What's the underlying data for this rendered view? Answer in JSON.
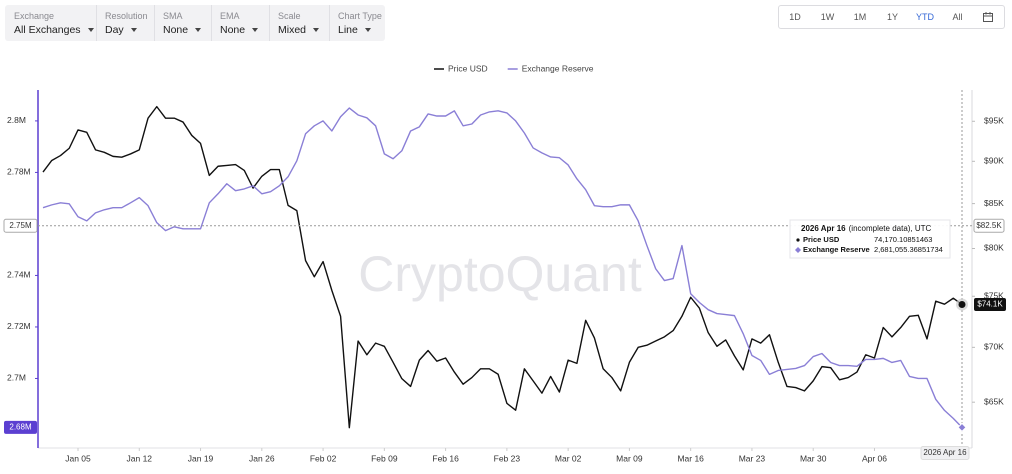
{
  "toolbar": {
    "dropdowns": [
      {
        "label": "Exchange",
        "value": "All Exchanges"
      },
      {
        "label": "Resolution",
        "value": "Day"
      },
      {
        "label": "SMA",
        "value": "None"
      },
      {
        "label": "EMA",
        "value": "None"
      },
      {
        "label": "Scale",
        "value": "Mixed"
      },
      {
        "label": "Chart Type",
        "value": "Line"
      }
    ],
    "ranges": [
      "1D",
      "1W",
      "1M",
      "1Y",
      "YTD",
      "All"
    ],
    "active_range": "YTD"
  },
  "chart_data": {
    "type": "line",
    "watermark": "CryptoQuant",
    "legend": "top",
    "x": [
      "Jan 01",
      "Jan 02",
      "Jan 03",
      "Jan 04",
      "Jan 05",
      "Jan 06",
      "Jan 07",
      "Jan 08",
      "Jan 09",
      "Jan 10",
      "Jan 11",
      "Jan 12",
      "Jan 13",
      "Jan 14",
      "Jan 15",
      "Jan 16",
      "Jan 17",
      "Jan 18",
      "Jan 19",
      "Jan 20",
      "Jan 21",
      "Jan 22",
      "Jan 23",
      "Jan 24",
      "Jan 25",
      "Jan 26",
      "Jan 27",
      "Jan 28",
      "Jan 29",
      "Jan 30",
      "Jan 31",
      "Feb 01",
      "Feb 02",
      "Feb 03",
      "Feb 04",
      "Feb 05",
      "Feb 06",
      "Feb 07",
      "Feb 08",
      "Feb 09",
      "Feb 10",
      "Feb 11",
      "Feb 12",
      "Feb 13",
      "Feb 14",
      "Feb 15",
      "Feb 16",
      "Feb 17",
      "Feb 18",
      "Feb 19",
      "Feb 20",
      "Feb 21",
      "Feb 22",
      "Feb 23",
      "Feb 24",
      "Feb 25",
      "Feb 26",
      "Feb 27",
      "Feb 28",
      "Mar 01",
      "Mar 02",
      "Mar 03",
      "Mar 04",
      "Mar 05",
      "Mar 06",
      "Mar 07",
      "Mar 08",
      "Mar 09",
      "Mar 10",
      "Mar 11",
      "Mar 12",
      "Mar 13",
      "Mar 14",
      "Mar 15",
      "Mar 16",
      "Mar 17",
      "Mar 18",
      "Mar 19",
      "Mar 20",
      "Mar 21",
      "Mar 22",
      "Mar 23",
      "Mar 24",
      "Mar 25",
      "Mar 26",
      "Mar 27",
      "Mar 28",
      "Mar 29",
      "Mar 30",
      "Mar 31",
      "Apr 01",
      "Apr 02",
      "Apr 03",
      "Apr 04",
      "Apr 05",
      "Apr 06",
      "Apr 07",
      "Apr 08",
      "Apr 09",
      "Apr 10",
      "Apr 11",
      "Apr 12",
      "Apr 13",
      "Apr 14",
      "Apr 15",
      "Apr 16"
    ],
    "xticks": [
      "Jan 05",
      "Jan 12",
      "Jan 19",
      "Jan 26",
      "Feb 02",
      "Feb 09",
      "Feb 16",
      "Feb 23",
      "Mar 02",
      "Mar 09",
      "Mar 16",
      "Mar 23",
      "Mar 30",
      "Apr 06"
    ],
    "series": [
      {
        "name": "Price USD",
        "color": "#111111",
        "axis": "y2",
        "last_label": "$74.1K",
        "values": [
          88.7,
          90.1,
          90.7,
          91.6,
          93.9,
          93.6,
          91.4,
          91.1,
          90.6,
          90.5,
          90.9,
          91.4,
          95.4,
          96.9,
          95.4,
          95.4,
          94.9,
          93.2,
          92.2,
          88.3,
          89.4,
          89.5,
          89.6,
          88.9,
          86.8,
          88.2,
          89.0,
          89.0,
          84.8,
          84.2,
          78.7,
          77.0,
          78.6,
          75.6,
          73.0,
          62.8,
          70.6,
          69.3,
          70.4,
          70.1,
          68.6,
          67.1,
          66.4,
          68.8,
          69.7,
          68.7,
          69.0,
          67.7,
          66.6,
          67.2,
          68.0,
          68.0,
          67.5,
          64.9,
          64.3,
          68.0,
          66.9,
          65.8,
          67.3,
          65.9,
          68.8,
          68.5,
          72.6,
          70.9,
          68.0,
          67.2,
          66.0,
          68.6,
          70.0,
          70.2,
          70.6,
          71.0,
          71.6,
          73.0,
          74.9,
          73.8,
          71.4,
          70.1,
          70.7,
          69.2,
          67.9,
          70.8,
          70.4,
          71.2,
          68.6,
          66.4,
          66.3,
          66.0,
          66.9,
          68.2,
          68.1,
          67.0,
          67.2,
          67.7,
          69.3,
          69.0,
          71.9,
          71.0,
          71.9,
          73.0,
          73.1,
          70.8,
          74.5,
          74.2,
          74.8,
          74.17
        ]
      },
      {
        "name": "Exchange Reserve",
        "color": "#8a7fd6",
        "last_label": "2.68M",
        "values": [
          2.7663,
          2.7674,
          2.7682,
          2.7678,
          2.7628,
          2.7612,
          2.7643,
          2.7655,
          2.7663,
          2.7663,
          2.7682,
          2.7702,
          2.7671,
          2.7605,
          2.7574,
          2.7589,
          2.7581,
          2.7581,
          2.7581,
          2.7682,
          2.7717,
          2.7756,
          2.7729,
          2.7736,
          2.7748,
          2.7717,
          2.7725,
          2.7748,
          2.7783,
          2.7845,
          2.795,
          2.7981,
          2.8,
          2.7961,
          2.8016,
          2.805,
          2.8023,
          2.8012,
          2.7981,
          2.7872,
          2.7853,
          2.7884,
          2.7961,
          2.7977,
          2.8027,
          2.8019,
          2.8019,
          2.8039,
          2.7981,
          2.7988,
          2.8023,
          2.8035,
          2.8039,
          2.8031,
          2.8,
          2.7953,
          2.7895,
          2.7876,
          2.786,
          2.7857,
          2.7829,
          2.7775,
          2.7733,
          2.7671,
          2.7667,
          2.7667,
          2.7674,
          2.7674,
          2.7612,
          2.7516,
          2.7426,
          2.738,
          2.7388,
          2.7516,
          2.7329,
          2.7295,
          2.7267,
          2.7252,
          2.7248,
          2.7244,
          2.7174,
          2.7089,
          2.707,
          2.7016,
          2.7031,
          2.7035,
          2.7039,
          2.705,
          2.7085,
          2.7097,
          2.7062,
          2.705,
          2.705,
          2.7047,
          2.7074,
          2.7074,
          2.7078,
          2.7062,
          2.707,
          2.7008,
          2.7,
          2.7,
          2.6919,
          2.6876,
          2.6845,
          2.681
        ]
      }
    ],
    "ylim": [
      2.673,
      2.812
    ],
    "yticks": [
      {
        "value": 2.7,
        "label": "2.7M"
      },
      {
        "value": 2.72,
        "label": "2.72M"
      },
      {
        "value": 2.74,
        "label": "2.74M"
      },
      {
        "value": 2.76,
        "label": "2.76M"
      },
      {
        "value": 2.78,
        "label": "2.78M"
      },
      {
        "value": 2.8,
        "label": "2.8M"
      }
    ],
    "y2lim": [
      61.1,
      99.1
    ],
    "y2_log": true,
    "y2ticks": [
      {
        "value": 65,
        "label": "$65K"
      },
      {
        "value": 70,
        "label": "$70K"
      },
      {
        "value": 75,
        "label": "$75K"
      },
      {
        "value": 80,
        "label": "$80K"
      },
      {
        "value": 85,
        "label": "$85K"
      },
      {
        "value": 90,
        "label": "$90K"
      },
      {
        "value": 95,
        "label": "$95K"
      }
    ],
    "crosshair": {
      "x": "Apr 16",
      "x_label": "2026 Apr 16",
      "y2": 82.5,
      "y_label": "2.75M",
      "y2_label": "$82.5K"
    },
    "tooltip": {
      "date": "2026 Apr 16",
      "title_rest": "(incomplete data), UTC",
      "values": [
        "74,170.10851463",
        "2,681,055.36851734"
      ]
    }
  }
}
